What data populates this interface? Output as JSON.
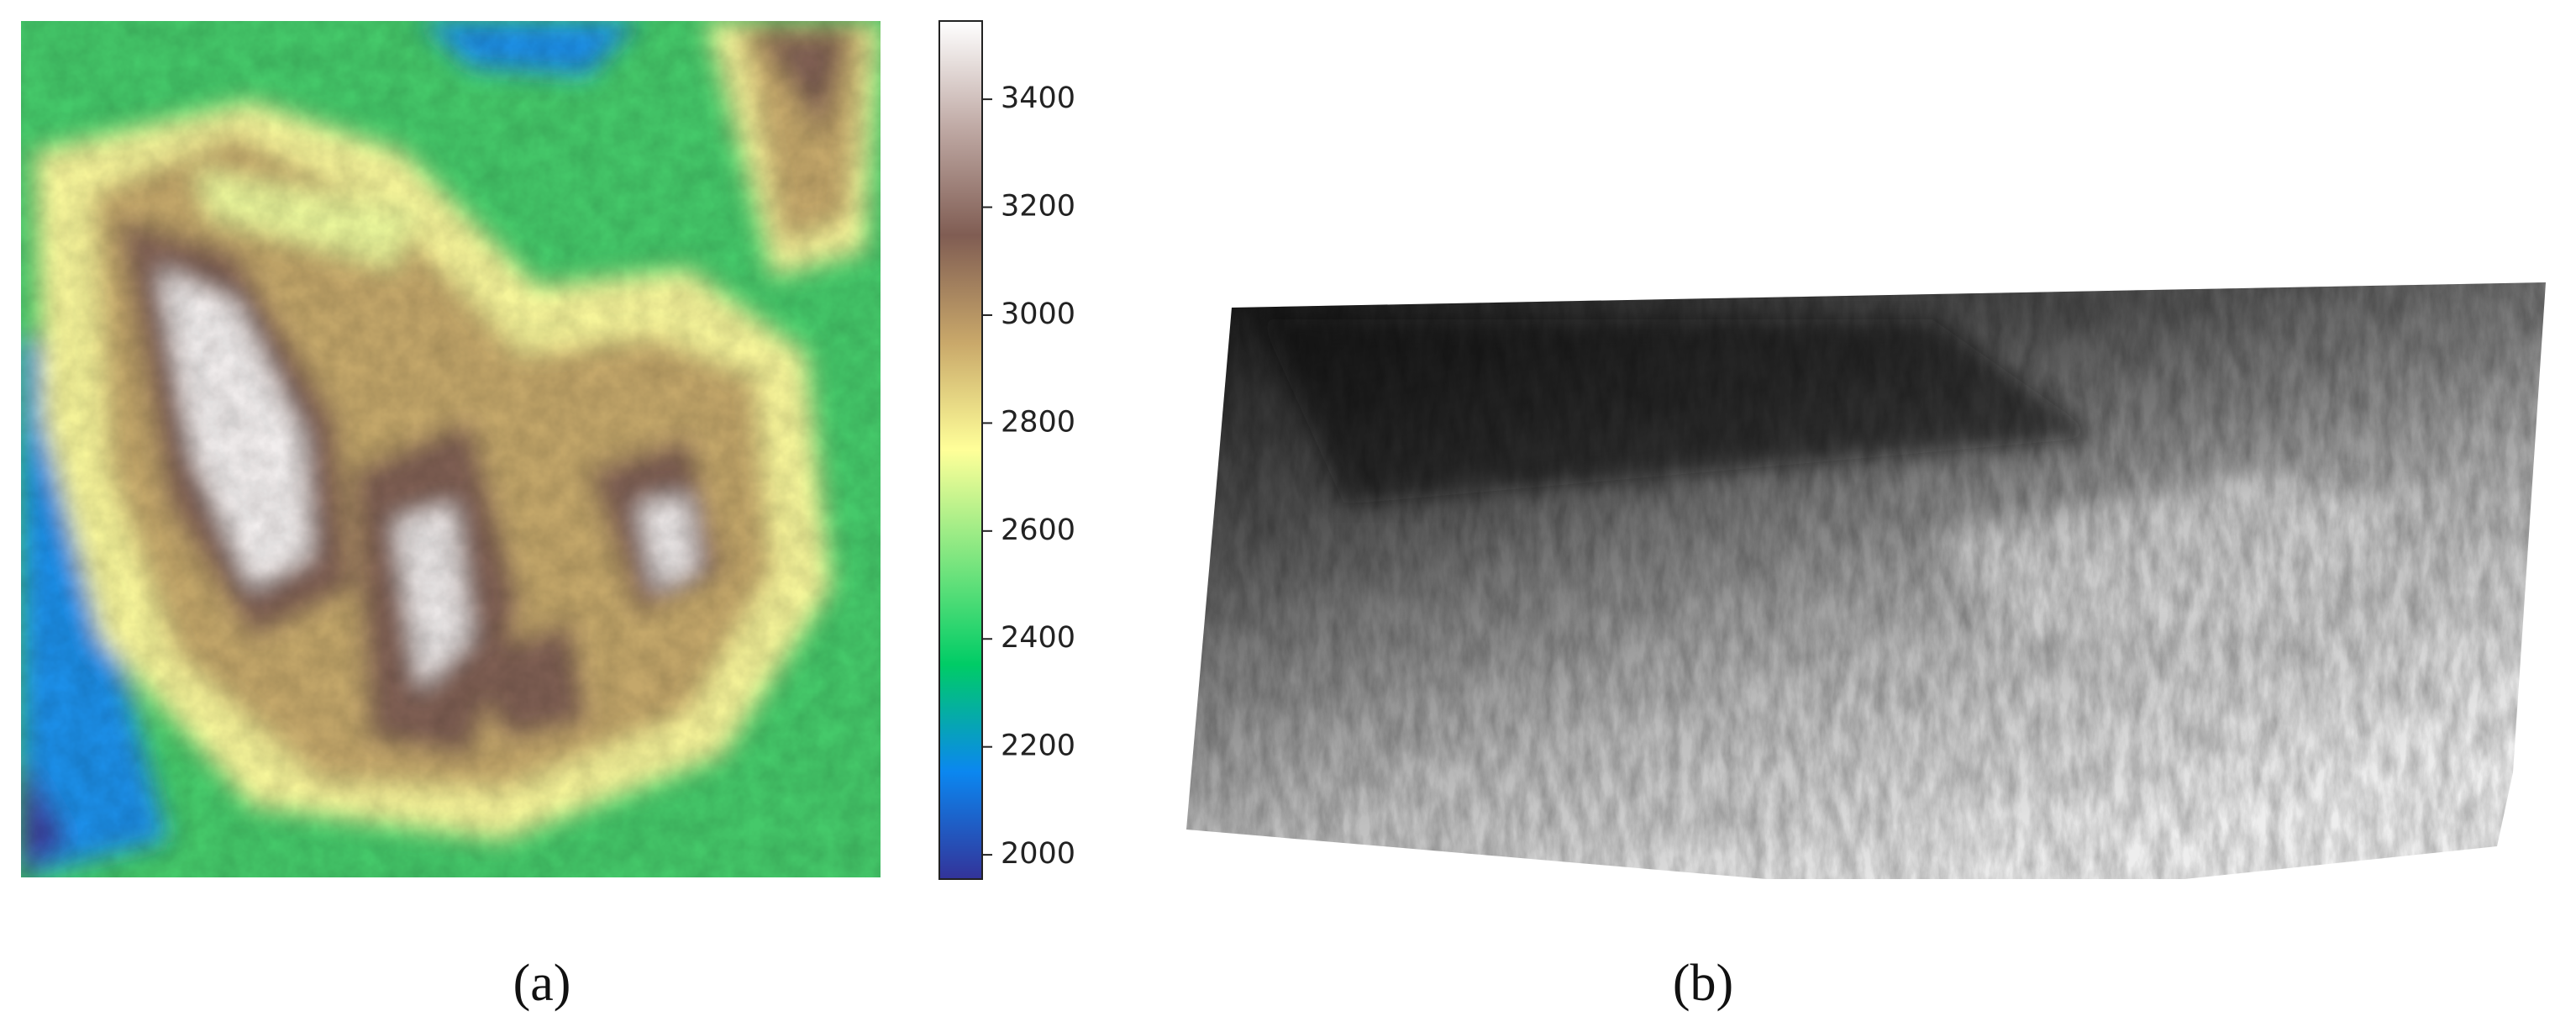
{
  "chart_data": {
    "type": "heatmap",
    "colormap": "terrain",
    "clim": [
      1955,
      3545
    ],
    "cticks": [
      2000,
      2200,
      2400,
      2600,
      2800,
      3000,
      3200,
      3400
    ],
    "panel_labels": [
      "(a)",
      "(b)"
    ]
  }
}
